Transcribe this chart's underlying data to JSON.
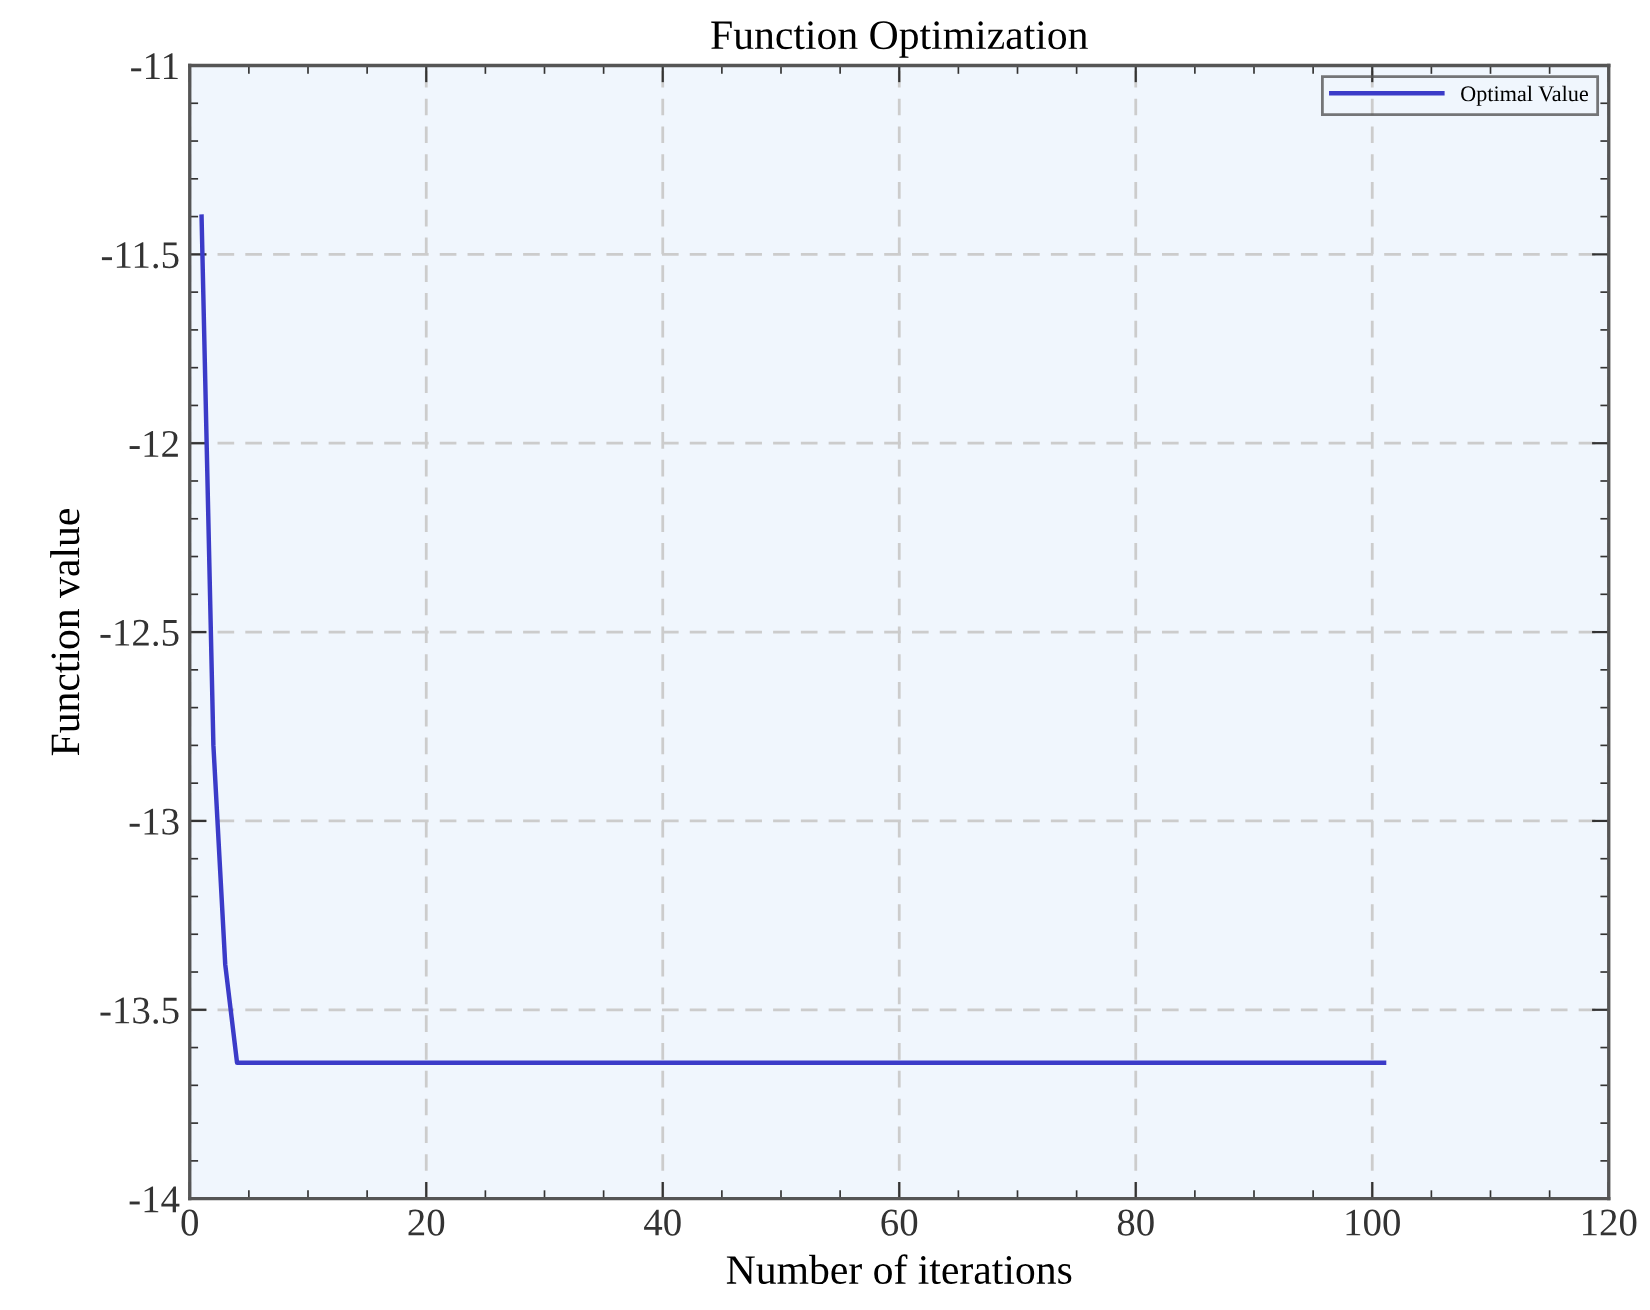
{
  "chart_data": {
    "type": "line",
    "title": "Function Optimization",
    "xlabel": "Number of iterations",
    "ylabel": "Function value",
    "x": [
      1,
      2,
      3,
      4,
      20,
      40,
      60,
      80,
      101
    ],
    "series": [
      {
        "name": "Optimal Value",
        "color": "#3b3bc8",
        "values": [
          -11.4,
          -12.8,
          -13.38,
          -13.64,
          -13.64,
          -13.64,
          -13.64,
          -13.64,
          -13.64
        ]
      }
    ],
    "xlim": [
      0,
      120
    ],
    "xticks": [
      0,
      20,
      40,
      60,
      80,
      100,
      120
    ],
    "ylim": [
      -14,
      -11
    ],
    "yticks": [
      -14,
      -13.5,
      -13,
      -12.5,
      -12,
      -11.5,
      -11
    ],
    "grid": true,
    "legend": "top right",
    "marker": "none",
    "line_style": "solid"
  }
}
